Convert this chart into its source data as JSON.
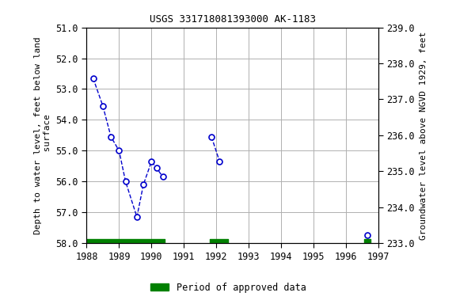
{
  "title": "USGS 331718081393000 AK-1183",
  "ylabel_left": "Depth to water level, feet below land\n surface",
  "ylabel_right": "Groundwater level above NGVD 1929, feet",
  "ylim_left": [
    58.0,
    51.0
  ],
  "ylim_right": [
    233.0,
    239.0
  ],
  "xlim": [
    1988,
    1997
  ],
  "xticks": [
    1988,
    1989,
    1990,
    1991,
    1992,
    1993,
    1994,
    1995,
    1996,
    1997
  ],
  "yticks_left": [
    51.0,
    52.0,
    53.0,
    54.0,
    55.0,
    56.0,
    57.0,
    58.0
  ],
  "yticks_right": [
    233.0,
    234.0,
    235.0,
    236.0,
    237.0,
    238.0,
    239.0
  ],
  "segments": [
    {
      "x": [
        1988.2,
        1988.5,
        1988.75,
        1989.0,
        1989.2,
        1989.55,
        1989.75,
        1990.0,
        1990.15,
        1990.35
      ],
      "y": [
        52.65,
        53.55,
        54.55,
        55.0,
        56.0,
        57.15,
        56.1,
        55.35,
        55.55,
        55.85
      ]
    },
    {
      "x": [
        1991.85,
        1992.1
      ],
      "y": [
        54.55,
        55.35
      ]
    }
  ],
  "isolated_points": {
    "x": [
      1996.65
    ],
    "y": [
      57.75
    ]
  },
  "line_color": "#0000cc",
  "marker_color": "#0000cc",
  "approved_bars": [
    {
      "x_start": 1988.0,
      "x_end": 1990.4,
      "y": 58.0
    },
    {
      "x_start": 1991.8,
      "x_end": 1992.35,
      "y": 58.0
    },
    {
      "x_start": 1996.55,
      "x_end": 1996.75,
      "y": 58.0
    }
  ],
  "approved_bar_color": "#008000",
  "approved_bar_height": 0.13,
  "legend_label": "Period of approved data",
  "background_color": "#ffffff",
  "grid_color": "#b0b0b0",
  "title_fontsize": 9,
  "label_fontsize": 8,
  "tick_fontsize": 8.5
}
